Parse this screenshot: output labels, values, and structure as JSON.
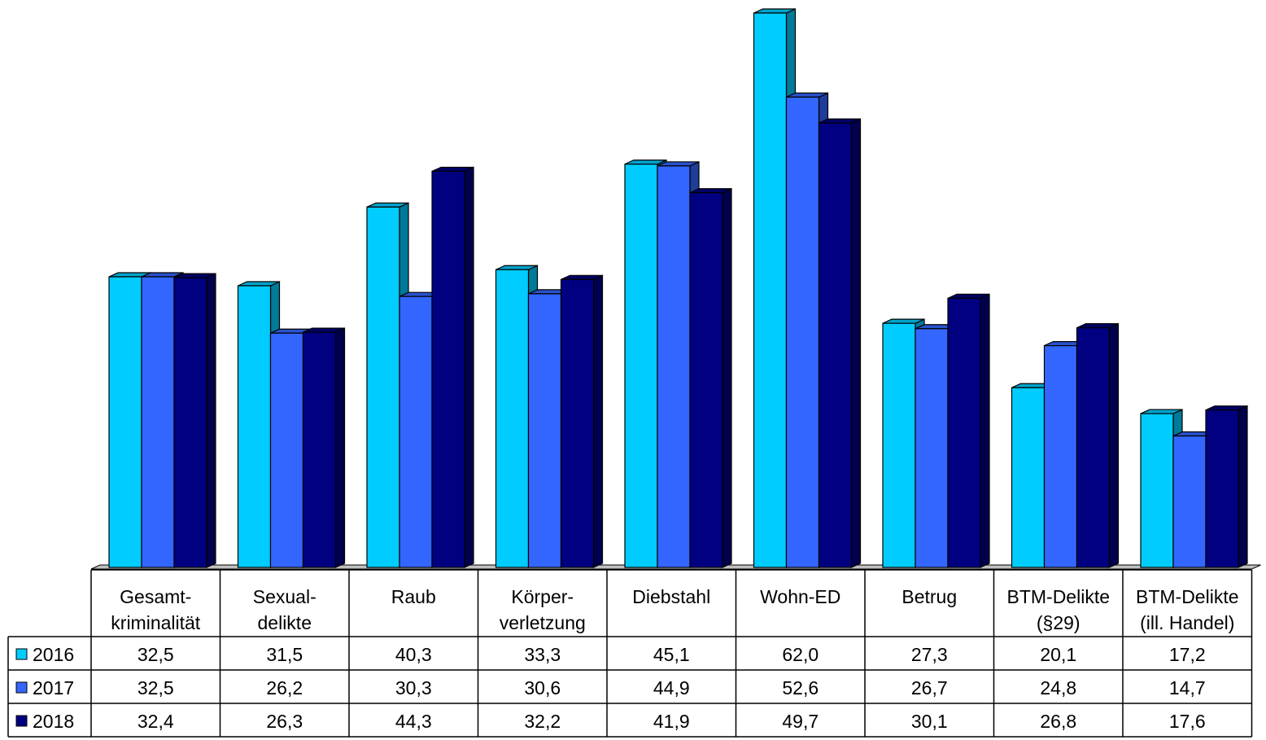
{
  "chart_data": {
    "type": "bar",
    "title": "",
    "xlabel": "",
    "ylabel": "",
    "ylim": [
      0,
      62.0
    ],
    "grid": false,
    "legend": "data-table-left",
    "categories": [
      [
        "Gesamt-",
        "kriminalität"
      ],
      [
        "Sexual-",
        "delikte"
      ],
      [
        "Raub"
      ],
      [
        "Körper-",
        "verletzung"
      ],
      [
        "Diebstahl"
      ],
      [
        "Wohn-ED"
      ],
      [
        "Betrug"
      ],
      [
        "BTM-Delikte",
        "(§29)"
      ],
      [
        "BTM-Delikte",
        "(ill. Handel)"
      ]
    ],
    "series": [
      {
        "name": "2016",
        "color": "#00CCFF",
        "values": [
          32.5,
          31.5,
          40.3,
          33.3,
          45.1,
          62.0,
          27.3,
          20.1,
          17.2
        ],
        "labels": [
          "32,5",
          "31,5",
          "40,3",
          "33,3",
          "45,1",
          "62,0",
          "27,3",
          "20,1",
          "17,2"
        ]
      },
      {
        "name": "2017",
        "color": "#3366FF",
        "values": [
          32.5,
          26.2,
          30.3,
          30.6,
          44.9,
          52.6,
          26.7,
          24.8,
          14.7
        ],
        "labels": [
          "32,5",
          "26,2",
          "30,3",
          "30,6",
          "44,9",
          "52,6",
          "26,7",
          "24,8",
          "14,7"
        ]
      },
      {
        "name": "2018",
        "color": "#000080",
        "values": [
          32.4,
          26.3,
          44.3,
          32.2,
          41.9,
          49.7,
          30.1,
          26.8,
          17.6
        ],
        "labels": [
          "32,4",
          "26,3",
          "44,3",
          "32,2",
          "41,9",
          "49,7",
          "30,1",
          "26,8",
          "17,6"
        ]
      }
    ]
  }
}
